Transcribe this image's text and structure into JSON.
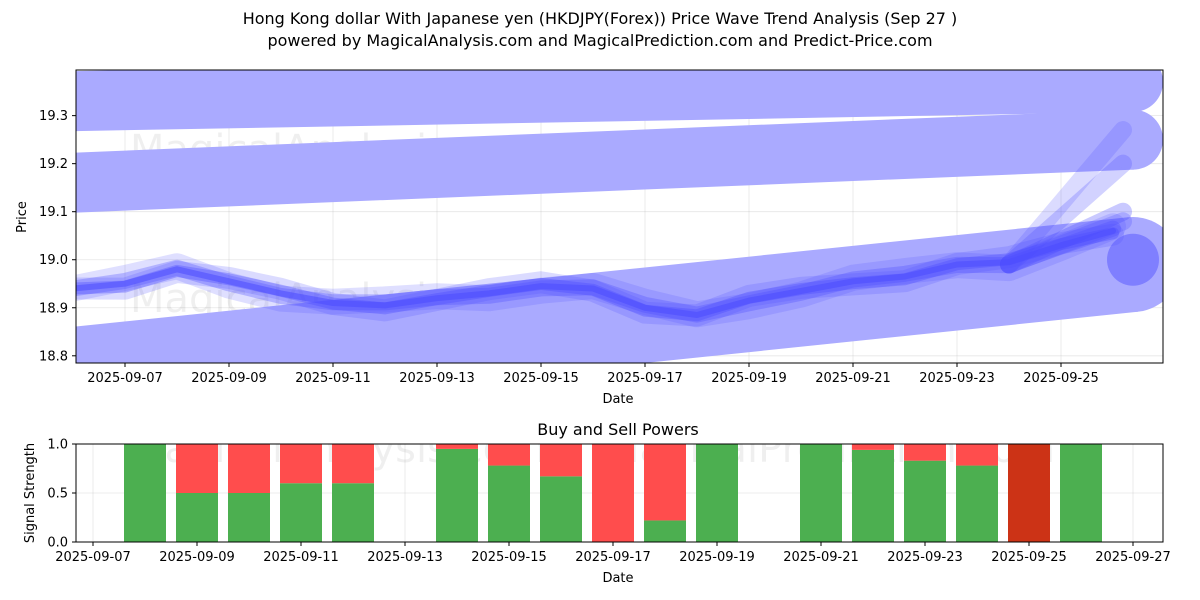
{
  "title_line1": "Hong Kong dollar With Japanese yen (HKDJPY(Forex)) Price Wave Trend Analysis (Sep 27 )",
  "title_line2": "powered by MagicalAnalysis.com and MagicalPrediction.com and Predict-Price.com",
  "watermarks": [
    "MagicalAnalysis.com",
    "MagicalPrediction.com"
  ],
  "colors": {
    "band": "#aaaaff",
    "wave": "#4b4bff",
    "buy": "#4caf50",
    "sell": "#ff4d4d",
    "sell_dark": "#cc3316"
  },
  "chart_data": [
    {
      "type": "line",
      "xlabel": "Date",
      "ylabel": "Price",
      "ylim": [
        18.785,
        19.395
      ],
      "yticks": [
        "18.8",
        "18.9",
        "19.0",
        "19.1",
        "19.2",
        "19.3"
      ],
      "xticks": [
        "2025-09-07",
        "2025-09-09",
        "2025-09-11",
        "2025-09-13",
        "2025-09-15",
        "2025-09-17",
        "2025-09-19",
        "2025-09-21",
        "2025-09-23",
        "2025-09-25"
      ],
      "bands": [
        {
          "name": "upper band",
          "start": 19.33,
          "end": 19.37
        },
        {
          "name": "middle band",
          "start": 19.16,
          "end": 19.25
        },
        {
          "name": "lower band",
          "start": 18.76,
          "end": 18.99
        }
      ],
      "series": [
        {
          "name": "price wave",
          "x": [
            "2025-09-06",
            "2025-09-07",
            "2025-09-08",
            "2025-09-09",
            "2025-09-10",
            "2025-09-11",
            "2025-09-12",
            "2025-09-13",
            "2025-09-14",
            "2025-09-15",
            "2025-09-16",
            "2025-09-17",
            "2025-09-18",
            "2025-09-19",
            "2025-09-20",
            "2025-09-21",
            "2025-09-22",
            "2025-09-23",
            "2025-09-24",
            "2025-09-25",
            "2025-09-26"
          ],
          "values": [
            18.94,
            18.95,
            18.98,
            18.955,
            18.93,
            18.91,
            18.905,
            18.92,
            18.93,
            18.945,
            18.94,
            18.9,
            18.885,
            18.915,
            18.935,
            18.955,
            18.965,
            18.99,
            18.995,
            19.03,
            19.06
          ]
        }
      ]
    },
    {
      "type": "bar",
      "title": "Buy and Sell Powers",
      "xlabel": "Date",
      "ylabel": "Signal Strength",
      "ylim": [
        0,
        1
      ],
      "yticks": [
        "0.0",
        "0.5",
        "1.0"
      ],
      "xticks": [
        "2025-09-07",
        "2025-09-09",
        "2025-09-11",
        "2025-09-13",
        "2025-09-15",
        "2025-09-17",
        "2025-09-19",
        "2025-09-21",
        "2025-09-23",
        "2025-09-25",
        "2025-09-27"
      ],
      "series": [
        {
          "name": "buy",
          "x": [
            "2025-09-08",
            "2025-09-09",
            "2025-09-10",
            "2025-09-11",
            "2025-09-12",
            "2025-09-14",
            "2025-09-15",
            "2025-09-16",
            "2025-09-17",
            "2025-09-18",
            "2025-09-19",
            "2025-09-21",
            "2025-09-22",
            "2025-09-23",
            "2025-09-24",
            "2025-09-25",
            "2025-09-26"
          ],
          "values": [
            1.0,
            0.5,
            0.5,
            0.6,
            0.6,
            0.95,
            0.78,
            0.67,
            0.0,
            0.22,
            1.0,
            1.0,
            0.94,
            0.83,
            0.78,
            0.0,
            1.0
          ]
        },
        {
          "name": "sell",
          "x": [
            "2025-09-08",
            "2025-09-09",
            "2025-09-10",
            "2025-09-11",
            "2025-09-12",
            "2025-09-14",
            "2025-09-15",
            "2025-09-16",
            "2025-09-17",
            "2025-09-18",
            "2025-09-19",
            "2025-09-21",
            "2025-09-22",
            "2025-09-23",
            "2025-09-24",
            "2025-09-25",
            "2025-09-26"
          ],
          "values": [
            0.0,
            0.5,
            0.5,
            0.4,
            0.4,
            0.05,
            0.22,
            0.33,
            1.0,
            0.78,
            0.0,
            0.0,
            0.06,
            0.17,
            0.22,
            1.0,
            0.0
          ]
        }
      ]
    }
  ]
}
